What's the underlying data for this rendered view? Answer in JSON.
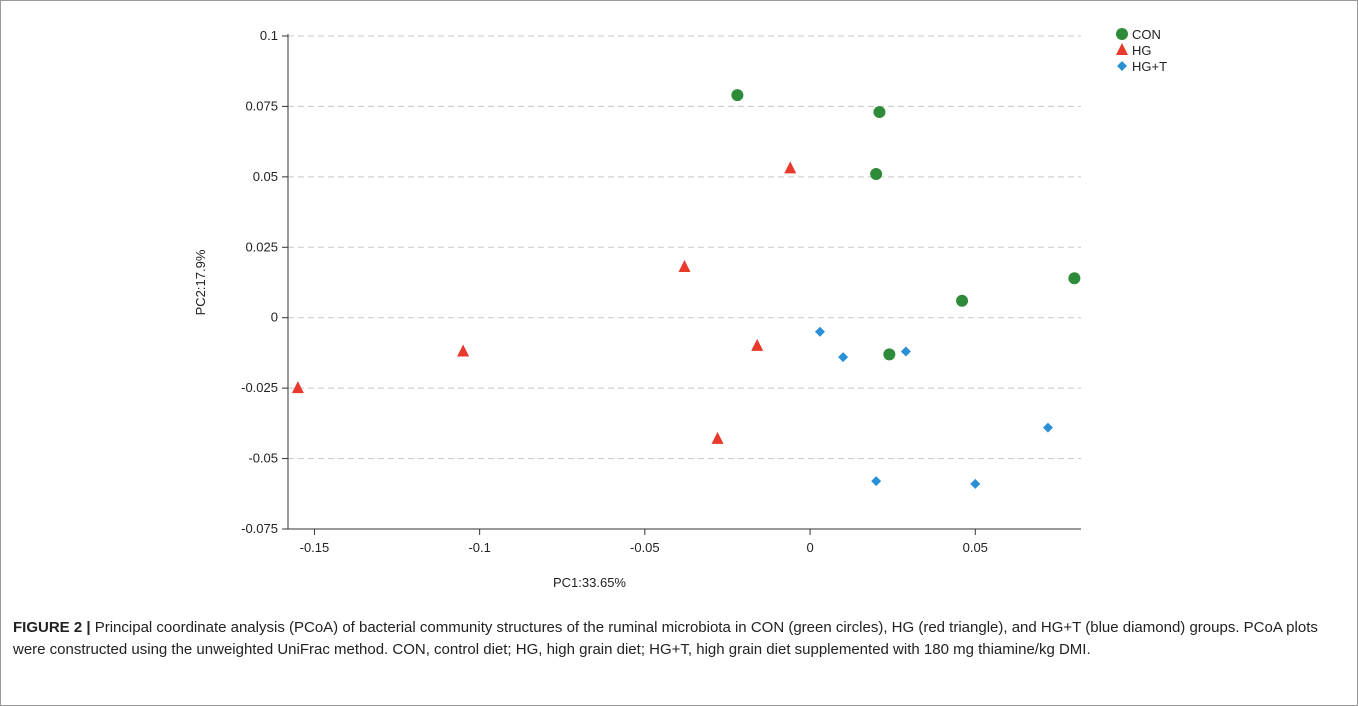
{
  "chart_data": {
    "type": "scatter",
    "xlabel": "PC1:33.65%",
    "ylabel": "PC2:17.9%",
    "xlim": [
      -0.158,
      0.082
    ],
    "ylim": [
      -0.075,
      0.1
    ],
    "x_ticks": [
      -0.15,
      -0.1,
      -0.05,
      0,
      0.05
    ],
    "x_tick_labels": [
      "-0.15",
      "-0.1",
      "-0.05",
      "0",
      "0.05"
    ],
    "y_ticks": [
      -0.075,
      -0.05,
      -0.025,
      0,
      0.025,
      0.05,
      0.075,
      0.1
    ],
    "y_tick_labels": [
      "-0.075",
      "-0.05",
      "-0.025",
      "0",
      "0.025",
      "0.05",
      "0.075",
      "0.1"
    ],
    "grid": "horizontal-dashed",
    "legend_position": "top-right",
    "series": [
      {
        "name": "CON",
        "marker": "circle",
        "color": "#2e8b3a",
        "points": [
          {
            "x": -0.022,
            "y": 0.079
          },
          {
            "x": 0.021,
            "y": 0.073
          },
          {
            "x": 0.02,
            "y": 0.051
          },
          {
            "x": 0.08,
            "y": 0.014
          },
          {
            "x": 0.046,
            "y": 0.006
          },
          {
            "x": 0.024,
            "y": -0.013
          }
        ]
      },
      {
        "name": "HG",
        "marker": "triangle",
        "color": "#e8392c",
        "points": [
          {
            "x": -0.006,
            "y": 0.053
          },
          {
            "x": -0.038,
            "y": 0.018
          },
          {
            "x": -0.105,
            "y": -0.012
          },
          {
            "x": -0.016,
            "y": -0.01
          },
          {
            "x": -0.155,
            "y": -0.025
          },
          {
            "x": -0.028,
            "y": -0.043
          }
        ]
      },
      {
        "name": "HG+T",
        "marker": "diamond",
        "color": "#2b8fd6",
        "points": [
          {
            "x": 0.003,
            "y": -0.005
          },
          {
            "x": 0.01,
            "y": -0.014
          },
          {
            "x": 0.029,
            "y": -0.012
          },
          {
            "x": 0.072,
            "y": -0.039
          },
          {
            "x": 0.02,
            "y": -0.058
          },
          {
            "x": 0.05,
            "y": -0.059
          }
        ]
      }
    ]
  },
  "caption": {
    "label": "FIGURE 2 |",
    "text": " Principal coordinate analysis (PCoA) of bacterial community structures of the ruminal microbiota in CON (green circles), HG (red triangle), and HG+T (blue diamond) groups. PCoA plots were constructed using the unweighted UniFrac method. CON, control diet; HG, high grain diet; HG+T, high grain diet supplemented with 180 mg thiamine/kg DMI."
  },
  "colors": {
    "grid": "#c8c8c8",
    "axis": "#333333"
  }
}
